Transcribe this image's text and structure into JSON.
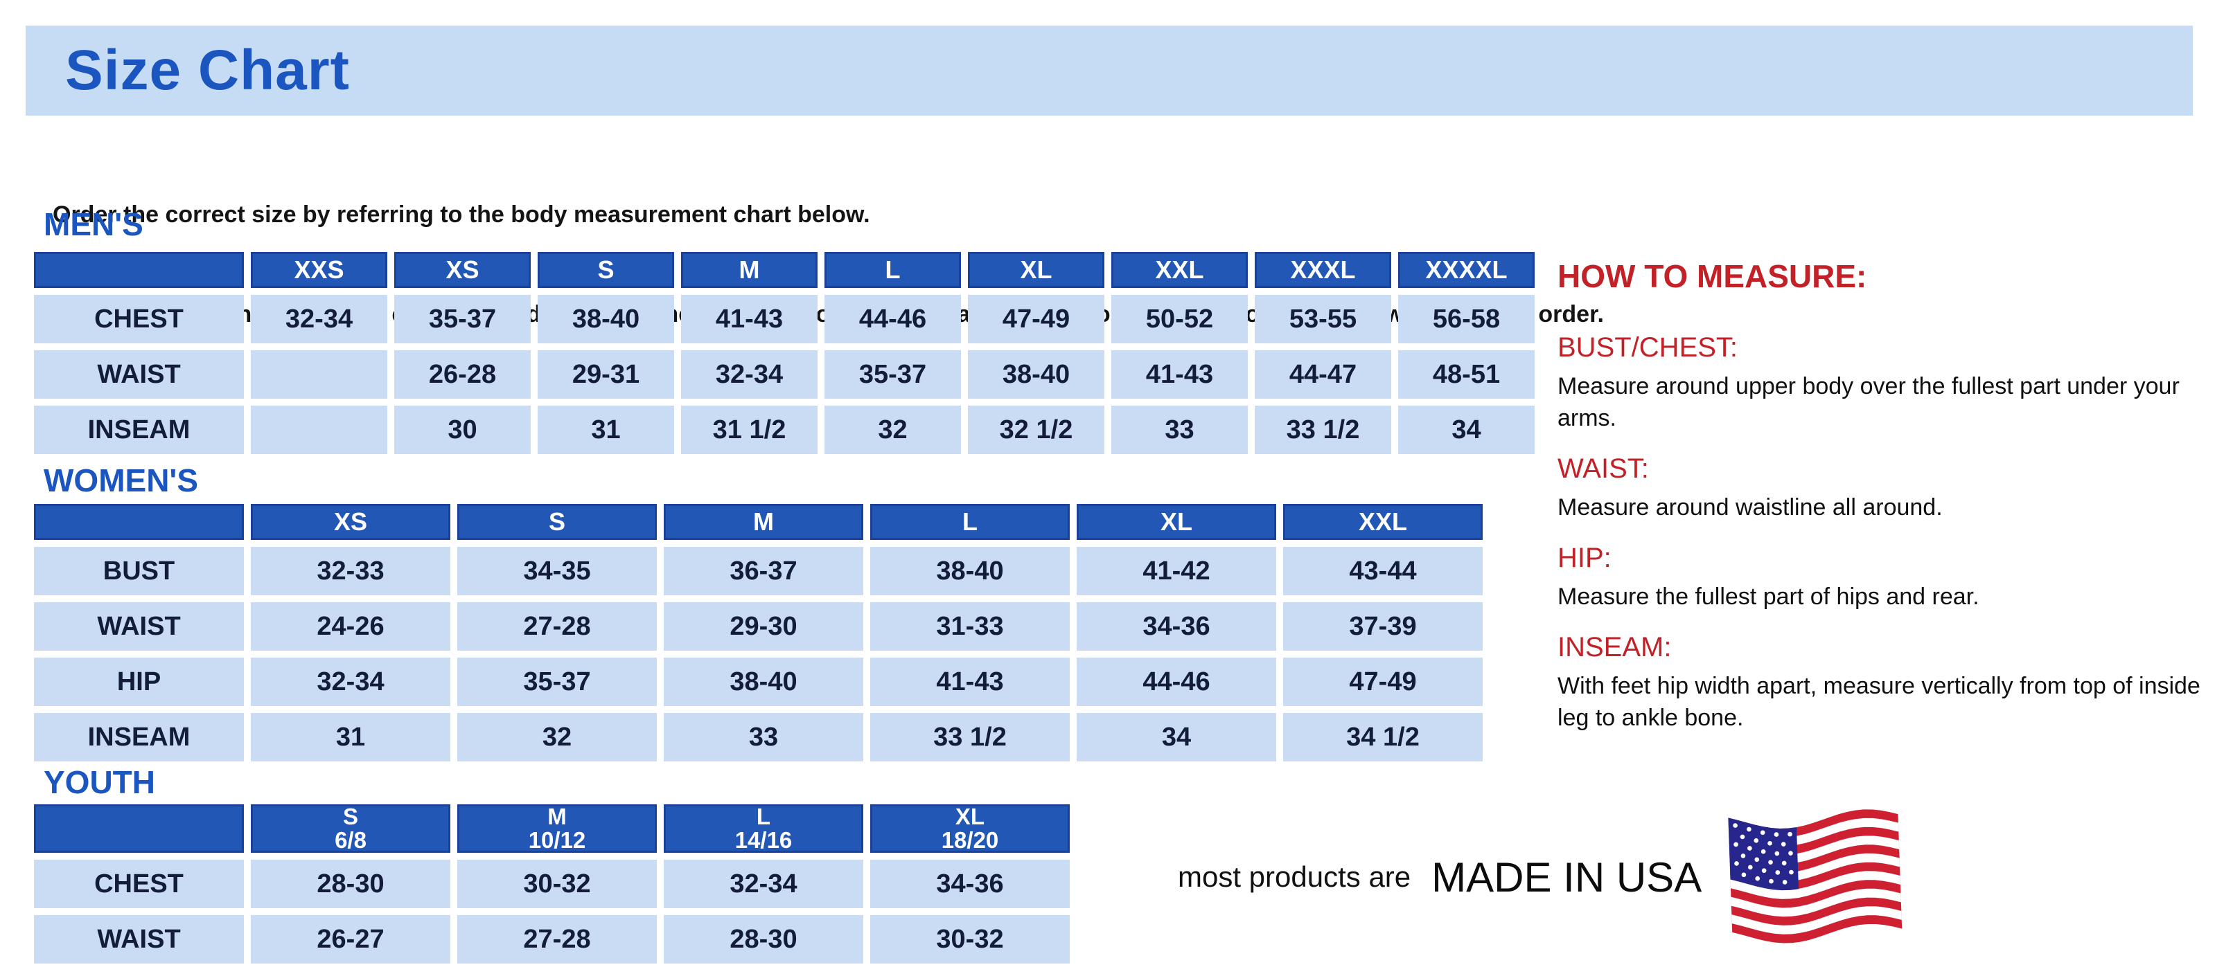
{
  "page": {
    "title": "Size Chart",
    "intro_line1": "Order the correct size by referring to the body measurement chart below.",
    "intro_line2": "Measurements shown on size chart are body measurements.  Find your body measurements on the chart to determine which size to order."
  },
  "colors": {
    "banner_bg": "#c6dcf5",
    "heading_blue": "#1a55c0",
    "table_header_bg": "#2257b5",
    "table_cell_bg": "#c9dcf3",
    "table_text": "#131c38",
    "red_heading": "#c32128",
    "flag_red": "#ce2030",
    "flag_blue": "#26268c"
  },
  "tables": [
    {
      "id": "mens",
      "section_label": "MEN'S",
      "columns": [
        "XXS",
        "XS",
        "S",
        "M",
        "L",
        "XL",
        "XXL",
        "XXXL",
        "XXXXL"
      ],
      "rows": [
        {
          "label": "CHEST",
          "values": [
            "32-34",
            "35-37",
            "38-40",
            "41-43",
            "44-46",
            "47-49",
            "50-52",
            "53-55",
            "56-58"
          ]
        },
        {
          "label": "WAIST",
          "values": [
            "",
            "26-28",
            "29-31",
            "32-34",
            "35-37",
            "38-40",
            "41-43",
            "44-47",
            "48-51"
          ]
        },
        {
          "label": "INSEAM",
          "values": [
            "",
            "30",
            "31",
            "31 1/2",
            "32",
            "32 1/2",
            "33",
            "33 1/2",
            "34"
          ]
        }
      ]
    },
    {
      "id": "womens",
      "section_label": "WOMEN'S",
      "columns": [
        "XS",
        "S",
        "M",
        "L",
        "XL",
        "XXL"
      ],
      "rows": [
        {
          "label": "BUST",
          "values": [
            "32-33",
            "34-35",
            "36-37",
            "38-40",
            "41-42",
            "43-44"
          ]
        },
        {
          "label": "WAIST",
          "values": [
            "24-26",
            "27-28",
            "29-30",
            "31-33",
            "34-36",
            "37-39"
          ]
        },
        {
          "label": "HIP",
          "values": [
            "32-34",
            "35-37",
            "38-40",
            "41-43",
            "44-46",
            "47-49"
          ]
        },
        {
          "label": "INSEAM",
          "values": [
            "31",
            "32",
            "33",
            "33 1/2",
            "34",
            "34 1/2"
          ]
        }
      ]
    },
    {
      "id": "youth",
      "section_label": "YOUTH",
      "columns": [
        {
          "size": "S",
          "range": "6/8"
        },
        {
          "size": "M",
          "range": "10/12"
        },
        {
          "size": "L",
          "range": "14/16"
        },
        {
          "size": "XL",
          "range": "18/20"
        }
      ],
      "rows": [
        {
          "label": "CHEST",
          "values": [
            "28-30",
            "30-32",
            "32-34",
            "34-36"
          ]
        },
        {
          "label": "WAIST",
          "values": [
            "26-27",
            "27-28",
            "28-30",
            "30-32"
          ]
        }
      ]
    }
  ],
  "how_to_measure": {
    "title": "HOW TO MEASURE:",
    "items": [
      {
        "label": "BUST/CHEST:",
        "text": "Measure around upper body over the fullest part under your arms."
      },
      {
        "label": "WAIST:",
        "text": "Measure around waistline all around."
      },
      {
        "label": "HIP:",
        "text": "Measure the fullest part of hips and rear."
      },
      {
        "label": "INSEAM:",
        "text": "With feet hip width apart, measure vertically from top of inside leg to ankle bone."
      }
    ]
  },
  "footer": {
    "prefix": "most products are",
    "emphasis": "MADE IN USA",
    "flag_icon": "usa-flag-icon"
  }
}
